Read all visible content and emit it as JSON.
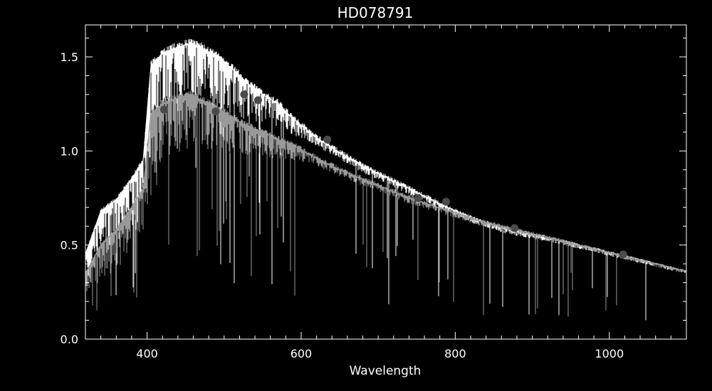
{
  "chart_data": {
    "type": "line",
    "title": "HD078791",
    "xlabel": "Wavelength",
    "ylabel": "",
    "xlim": [
      320,
      1100
    ],
    "ylim": [
      0.0,
      1.67
    ],
    "x_ticks": [
      400,
      600,
      800,
      1000
    ],
    "x_tick_labels": [
      "400",
      "600",
      "800",
      "1000"
    ],
    "y_ticks": [
      0.0,
      0.5,
      1.0,
      1.5
    ],
    "y_tick_labels": [
      "0.0",
      "0.5",
      "1.0",
      "1.5"
    ],
    "grid": false,
    "legend": "none",
    "colors": {
      "background": "#000000",
      "axes": "#ffffff",
      "upper_spectrum": "#ffffff",
      "lower_spectrum": "#999999",
      "photometry_points": "#4a4a4a"
    },
    "series": [
      {
        "style": "spectrum-upper",
        "x": [
          320,
          340,
          360,
          380,
          395,
          405,
          420,
          440,
          455,
          470,
          490,
          510,
          530,
          550,
          570,
          590,
          620,
          650,
          680,
          710,
          740,
          770,
          800,
          830,
          860,
          890,
          920,
          950,
          980,
          1010,
          1040,
          1070,
          1100
        ],
        "y": [
          0.45,
          0.68,
          0.74,
          0.85,
          0.95,
          1.45,
          1.52,
          1.55,
          1.57,
          1.55,
          1.5,
          1.44,
          1.36,
          1.3,
          1.25,
          1.17,
          1.07,
          0.99,
          0.92,
          0.86,
          0.8,
          0.74,
          0.68,
          0.63,
          0.59,
          0.56,
          0.54,
          0.51,
          0.48,
          0.45,
          0.42,
          0.39,
          0.36
        ]
      },
      {
        "style": "spectrum-lower",
        "x": [
          320,
          340,
          360,
          380,
          395,
          405,
          420,
          440,
          455,
          470,
          490,
          510,
          530,
          550,
          570,
          590,
          620,
          650,
          680,
          710,
          740,
          770,
          800,
          830,
          860,
          890,
          920,
          950,
          980,
          1010,
          1040,
          1070,
          1100
        ],
        "y": [
          0.35,
          0.5,
          0.58,
          0.7,
          0.8,
          1.2,
          1.25,
          1.28,
          1.3,
          1.27,
          1.23,
          1.18,
          1.13,
          1.1,
          1.06,
          1.03,
          0.96,
          0.9,
          0.85,
          0.8,
          0.75,
          0.71,
          0.67,
          0.63,
          0.6,
          0.57,
          0.54,
          0.51,
          0.48,
          0.45,
          0.42,
          0.39,
          0.36
        ]
      },
      {
        "style": "photometry",
        "x": [
          422,
          489,
          526,
          544,
          634,
          752,
          788,
          877,
          1018
        ],
        "y": [
          1.22,
          1.21,
          1.3,
          1.27,
          1.06,
          0.75,
          0.73,
          0.59,
          0.45
        ]
      }
    ]
  }
}
